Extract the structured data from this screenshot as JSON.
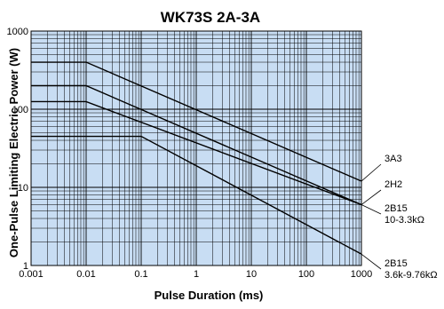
{
  "chart_data": {
    "type": "line",
    "title": "WK73S 2A-3A",
    "xlabel": "Pulse Duration (ms)",
    "ylabel": "One-Pulse Limiting Electric Power (W)",
    "x_scale": "log",
    "y_scale": "log",
    "xlim": [
      0.001,
      1000
    ],
    "ylim": [
      1,
      1000
    ],
    "x_ticks": [
      "0.001",
      "0.01",
      "0.1",
      "1",
      "10",
      "100",
      "1000"
    ],
    "y_ticks": [
      "1",
      "10",
      "100",
      "1000"
    ],
    "grid": true,
    "background": "#c8ddf3",
    "line_color": "#000000",
    "series": [
      {
        "name": "3A3",
        "x": [
          0.001,
          0.01,
          1000
        ],
        "y": [
          400,
          400,
          12
        ]
      },
      {
        "name": "2H2",
        "x": [
          0.001,
          0.01,
          1000
        ],
        "y": [
          200,
          200,
          6
        ]
      },
      {
        "name": "2B15 10-3.3kΩ",
        "label_lines": [
          "2B15",
          "10-3.3kΩ"
        ],
        "x": [
          0.001,
          0.01,
          1000
        ],
        "y": [
          125,
          125,
          6
        ]
      },
      {
        "name": "2B15 3.6k-9.76kΩ",
        "label_lines": [
          "2B15",
          "3.6k-9.76kΩ"
        ],
        "x": [
          0.001,
          0.1,
          1000
        ],
        "y": [
          45,
          45,
          1.4
        ]
      }
    ]
  }
}
